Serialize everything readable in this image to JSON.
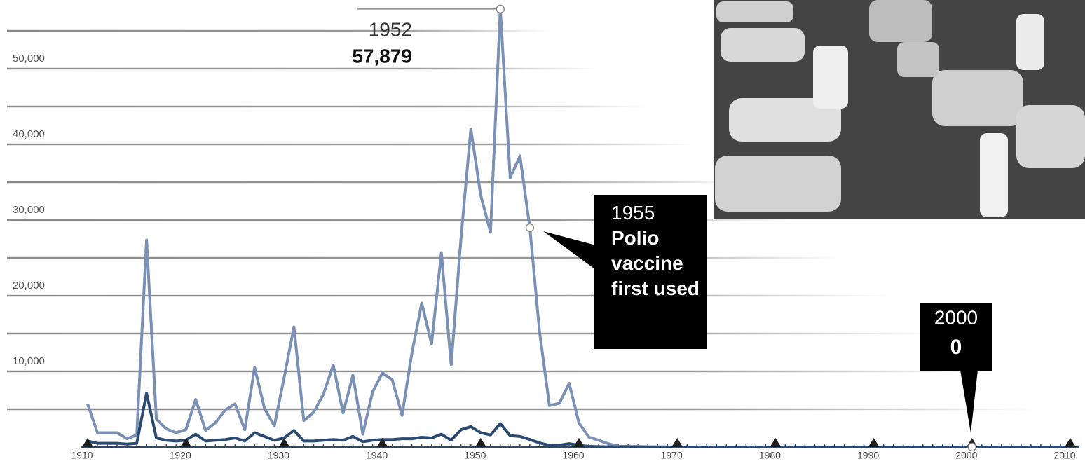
{
  "chart_data": {
    "type": "line",
    "x": [
      1910,
      1911,
      1912,
      1913,
      1914,
      1915,
      1916,
      1917,
      1918,
      1919,
      1920,
      1921,
      1922,
      1923,
      1924,
      1925,
      1926,
      1927,
      1928,
      1929,
      1930,
      1931,
      1932,
      1933,
      1934,
      1935,
      1936,
      1937,
      1938,
      1939,
      1940,
      1941,
      1942,
      1943,
      1944,
      1945,
      1946,
      1947,
      1948,
      1949,
      1950,
      1951,
      1952,
      1953,
      1954,
      1955,
      1956,
      1957,
      1958,
      1959,
      1960,
      1961,
      1962,
      1963,
      1964,
      1965,
      1966,
      1967,
      1968,
      1969,
      1970,
      1971,
      1972,
      1973,
      1974,
      1975,
      1976,
      1977,
      1978,
      1979,
      1980,
      1981,
      1982,
      1983,
      1984,
      1985,
      1986,
      1987,
      1988,
      1989,
      1990,
      1991,
      1992,
      1993,
      1994,
      1995,
      1996,
      1997,
      1998,
      1999,
      2000,
      2001,
      2002,
      2003,
      2004,
      2005,
      2006,
      2007,
      2008,
      2009,
      2010
    ],
    "series": [
      {
        "color": "#7b90b5",
        "values": [
          5700,
          1900,
          1900,
          1900,
          1100,
          1600,
          27363,
          3700,
          2400,
          1900,
          2300,
          6300,
          2200,
          3200,
          4900,
          5700,
          2300,
          10533,
          5100,
          2800,
          9200,
          15872,
          3500,
          4600,
          7000,
          10839,
          4500,
          9500,
          1700,
          7300,
          9800,
          8900,
          4200,
          12450,
          19029,
          13624,
          25698,
          10827,
          27726,
          42033,
          33300,
          28386,
          57879,
          35592,
          38476,
          28985,
          15140,
          5485,
          5787,
          8425,
          3190,
          1312,
          910,
          449,
          122,
          72,
          100,
          40,
          50,
          20,
          33,
          0,
          0,
          0,
          0,
          0,
          0,
          0,
          0,
          0,
          0,
          0,
          0,
          0,
          0,
          0,
          0,
          0,
          0,
          0,
          0,
          0,
          0,
          0,
          0,
          0,
          0,
          0,
          0,
          0,
          0,
          0,
          0,
          0,
          0,
          0,
          0,
          0,
          0,
          0,
          0
        ]
      },
      {
        "color": "#2b4a72",
        "values": [
          800,
          500,
          500,
          500,
          400,
          500,
          7100,
          1200,
          900,
          800,
          900,
          1700,
          800,
          900,
          1000,
          1200,
          800,
          1900,
          1400,
          900,
          1200,
          2200,
          800,
          800,
          900,
          1000,
          900,
          1400,
          700,
          900,
          1000,
          1000,
          1100,
          1100,
          1300,
          1200,
          1700,
          900,
          2300,
          2700,
          1900,
          1600,
          3100,
          1500,
          1400,
          1000,
          550,
          220,
          250,
          450,
          230,
          90,
          60,
          40,
          20,
          20,
          0,
          0,
          0,
          0,
          0,
          0,
          0,
          0,
          0,
          0,
          0,
          0,
          0,
          0,
          0,
          0,
          0,
          0,
          0,
          0,
          0,
          0,
          0,
          0,
          0,
          0,
          0,
          0,
          0,
          0,
          0,
          0,
          0,
          0,
          0,
          0,
          0,
          0,
          0,
          0,
          0,
          0,
          0,
          0,
          0
        ]
      }
    ],
    "xlim": [
      1910,
      2010
    ],
    "xticks": [
      1910,
      1920,
      1930,
      1940,
      1950,
      1960,
      1970,
      1980,
      1990,
      2000,
      2010
    ],
    "ylim": [
      0,
      60000
    ],
    "yticks": [
      {
        "value": 10000,
        "label": "10,000"
      },
      {
        "value": 20000,
        "label": "20,000"
      },
      {
        "value": 30000,
        "label": "30,000"
      },
      {
        "value": 40000,
        "label": "40,000"
      },
      {
        "value": 50000,
        "label": "50,000"
      }
    ],
    "ygrid": [
      5000,
      10000,
      15000,
      20000,
      25000,
      30000,
      35000,
      40000,
      45000,
      50000,
      55000
    ],
    "annotations": [
      {
        "x": 1952,
        "value": 57879,
        "label": "1952",
        "value_label": "57,879"
      },
      {
        "x": 1955,
        "label": "1955",
        "text": "Polio vaccine first used"
      },
      {
        "x": 2000,
        "value": 0,
        "label": "2000"
      }
    ]
  }
}
